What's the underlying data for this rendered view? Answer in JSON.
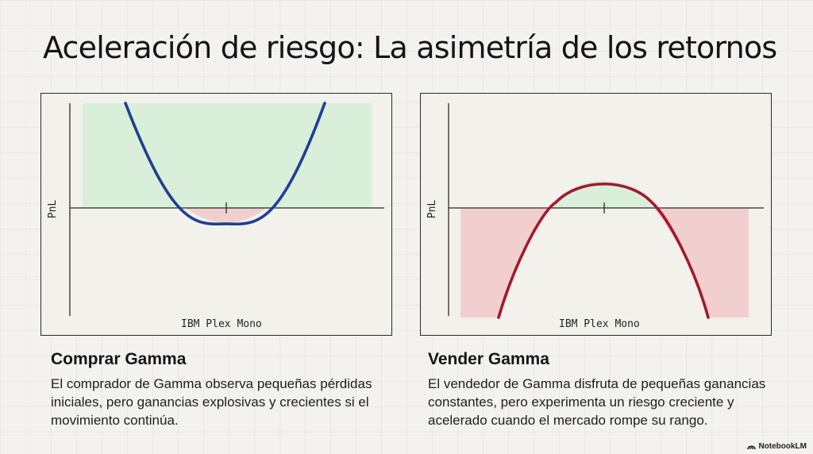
{
  "title": "Aceleración de riesgo: La asimetría de los retornos",
  "colors": {
    "buy_curve": "#1f3f94",
    "sell_curve": "#a3192c",
    "profit_fill": "#d9efd9",
    "loss_fill": "#f2cfcf"
  },
  "left": {
    "ylabel": "PnL",
    "xlabel": "IBM Plex Mono",
    "heading": "Comprar Gamma",
    "text": "El comprador de Gamma observa pequeñas pérdidas iniciales, pero ganancias explosivas y crecientes si el movimiento continúa."
  },
  "right": {
    "ylabel": "PnL",
    "xlabel": "IBM Plex Mono",
    "heading": "Vender Gamma",
    "text": "El vendedor de Gamma disfruta de pequeñas ganancias constantes, pero experimenta un riesgo creciente y acelerado cuando el mercado rompe su rango."
  },
  "brand": "NotebookLM",
  "icons": {
    "brand": "notebooklm-logo-icon"
  }
}
